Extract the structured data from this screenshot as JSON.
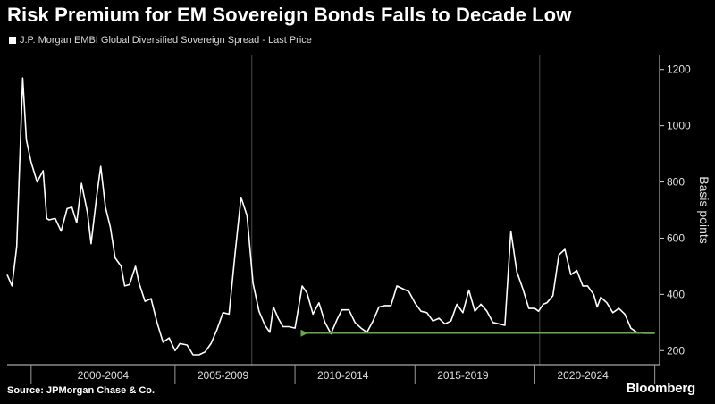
{
  "title": "Risk Premium for EM Sovereign Bonds Falls to Decade Low",
  "source": "Source: JPMorgan Chase & Co.",
  "brand": "Bloomberg",
  "colors": {
    "background": "#000000",
    "line": "#ffffff",
    "arrow": "#6aa84f",
    "grid": "#4a4a4a"
  },
  "chart_data": {
    "type": "line",
    "legend": [
      "J.P. Morgan EMBI Global Diversified Sovereign Spread - Last Price"
    ],
    "ylabel": "Basis points",
    "ylim": [
      150,
      1250
    ],
    "yticks": [
      200,
      400,
      600,
      800,
      1000,
      1200
    ],
    "xlim": [
      1998.0,
      2025.2
    ],
    "period_boundaries": [
      1999,
      2005,
      2010,
      2015,
      2020,
      2025
    ],
    "major_gridlines": [
      2008.2,
      2020.2
    ],
    "period_labels": [
      {
        "label": "2000-2004",
        "x": 2002
      },
      {
        "label": "2005-2009",
        "x": 2007
      },
      {
        "label": "2010-2014",
        "x": 2012
      },
      {
        "label": "2015-2019",
        "x": 2017
      },
      {
        "label": "2020-2024",
        "x": 2022
      }
    ],
    "series": [
      {
        "name": "J.P. Morgan EMBI Global Diversified Sovereign Spread - Last Price",
        "x": [
          1998.0,
          1998.2,
          1998.4,
          1998.65,
          1998.8,
          1999.0,
          1999.25,
          1999.5,
          1999.65,
          1999.75,
          2000.0,
          2000.25,
          2000.5,
          2000.7,
          2000.9,
          2001.1,
          2001.35,
          2001.5,
          2001.75,
          2001.9,
          2002.1,
          2002.3,
          2002.5,
          2002.75,
          2002.9,
          2003.1,
          2003.35,
          2003.5,
          2003.75,
          2004.0,
          2004.25,
          2004.5,
          2004.75,
          2005.0,
          2005.2,
          2005.5,
          2005.75,
          2006.0,
          2006.25,
          2006.5,
          2006.75,
          2007.0,
          2007.25,
          2007.5,
          2007.75,
          2008.0,
          2008.25,
          2008.5,
          2008.75,
          2008.95,
          2009.1,
          2009.3,
          2009.5,
          2009.75,
          2010.0,
          2010.3,
          2010.5,
          2010.75,
          2011.0,
          2011.25,
          2011.5,
          2011.75,
          2011.95,
          2012.25,
          2012.5,
          2012.75,
          2013.0,
          2013.25,
          2013.5,
          2013.75,
          2014.0,
          2014.25,
          2014.5,
          2014.75,
          2015.0,
          2015.25,
          2015.5,
          2015.75,
          2016.0,
          2016.25,
          2016.5,
          2016.75,
          2017.0,
          2017.25,
          2017.5,
          2017.75,
          2018.0,
          2018.25,
          2018.5,
          2018.75,
          2019.0,
          2019.25,
          2019.5,
          2019.75,
          2020.0,
          2020.15,
          2020.35,
          2020.5,
          2020.75,
          2021.0,
          2021.25,
          2021.5,
          2021.75,
          2022.0,
          2022.2,
          2022.45,
          2022.6,
          2022.75,
          2023.0,
          2023.25,
          2023.5,
          2023.75,
          2024.0,
          2024.25,
          2024.5,
          2024.75,
          2025.0
        ],
        "values": [
          470,
          430,
          570,
          1170,
          950,
          870,
          800,
          840,
          670,
          665,
          670,
          625,
          705,
          710,
          655,
          795,
          690,
          580,
          760,
          855,
          710,
          640,
          530,
          500,
          430,
          435,
          500,
          440,
          375,
          385,
          300,
          230,
          245,
          200,
          225,
          220,
          185,
          185,
          195,
          225,
          275,
          335,
          330,
          545,
          745,
          680,
          440,
          340,
          290,
          265,
          355,
          315,
          285,
          285,
          280,
          430,
          405,
          330,
          370,
          300,
          260,
          310,
          345,
          345,
          300,
          280,
          265,
          305,
          355,
          360,
          360,
          430,
          420,
          410,
          370,
          340,
          335,
          305,
          315,
          295,
          305,
          365,
          335,
          415,
          340,
          365,
          340,
          300,
          295,
          290,
          625,
          480,
          420,
          350,
          350,
          340,
          365,
          370,
          395,
          540,
          560,
          470,
          485,
          430,
          430,
          400,
          355,
          390,
          370,
          335,
          350,
          330,
          280,
          265,
          262,
          262,
          262
        ]
      }
    ],
    "annotations": [
      {
        "type": "arrow",
        "from": {
          "x": 2025.0,
          "y": 262
        },
        "to": {
          "x": 2010.5,
          "y": 262
        },
        "description": "decade low"
      }
    ]
  }
}
